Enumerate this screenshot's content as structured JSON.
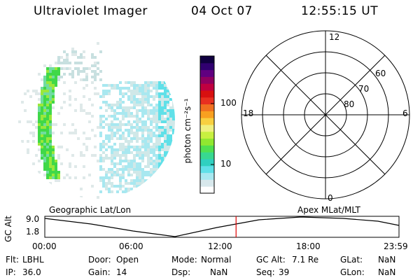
{
  "header": {
    "title": "Ultraviolet Imager",
    "date": "04 Oct 07",
    "time": "12:55:15 UT"
  },
  "colorbar": {
    "unit_label": "photon cm⁻²s⁻¹",
    "tick_labels": [
      "100",
      "10"
    ],
    "colors": [
      "#ffffff",
      "#d8e8ec",
      "#a8e8f0",
      "#60e0e8",
      "#30d0c0",
      "#38d890",
      "#50e050",
      "#90e830",
      "#c8f040",
      "#f0f080",
      "#f8d040",
      "#f8a020",
      "#f07020",
      "#e83020",
      "#d81010",
      "#c00040",
      "#900060",
      "#600080",
      "#300070",
      "#100040"
    ]
  },
  "polar_plot": {
    "mlt_labels": {
      "top": "12",
      "left": "18",
      "right": "6",
      "bottom": "0"
    },
    "lat_labels": [
      "60",
      "70",
      "80"
    ]
  },
  "timeline": {
    "left_label": "Geographic Lat/Lon",
    "right_label": "Apex  MLat/MLT",
    "y_axis_label": "GC Alt",
    "y_ticks": [
      "9.0",
      "1.8"
    ],
    "x_ticks": [
      "00:00",
      "06:00",
      "12:00",
      "18:00",
      "23:59"
    ],
    "current_time_fraction": 0.54
  },
  "status": {
    "rows": [
      [
        {
          "key": "Flt:",
          "value": "LBHL"
        },
        {
          "key": "Door:",
          "value": "Open"
        },
        {
          "key": "Mode:",
          "value": "Normal"
        },
        {
          "key": "GC Alt:",
          "value": "7.1 Re"
        },
        {
          "key": "GLat:",
          "value": "NaN"
        }
      ],
      [
        {
          "key": "IP:",
          "value": "36.0"
        },
        {
          "key": "Gain:",
          "value": "14"
        },
        {
          "key": "Dsp:",
          "value": "NaN"
        },
        {
          "key": "Seq:",
          "value": "39"
        },
        {
          "key": "GLon:",
          "value": "NaN"
        }
      ]
    ]
  }
}
